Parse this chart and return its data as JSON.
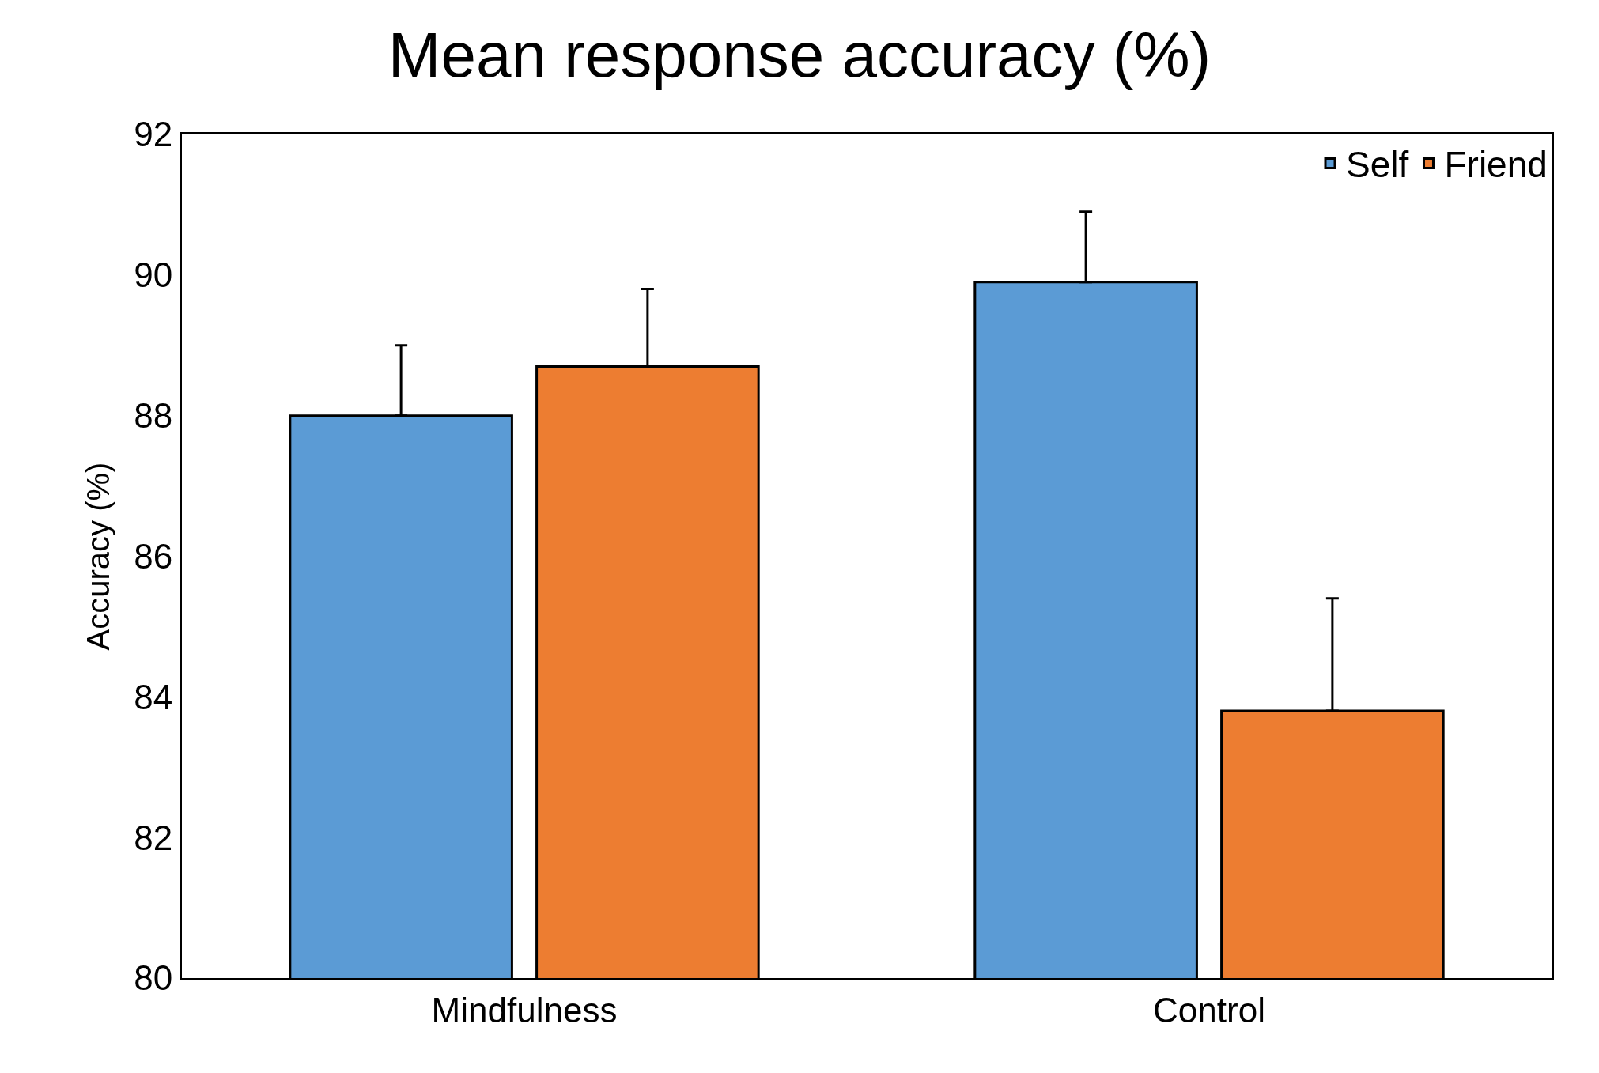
{
  "chart_data": {
    "type": "bar",
    "title": "Mean response accuracy (%)",
    "ylabel": "Accuracy (%)",
    "categories": [
      "Mindfulness",
      "Control"
    ],
    "series": [
      {
        "name": "Self",
        "color": "#5b9bd5",
        "values": [
          88.0,
          89.9
        ],
        "errors": [
          [
            88.0,
            89.0
          ],
          [
            89.9,
            90.9
          ]
        ]
      },
      {
        "name": "Friend",
        "color": "#ed7d31",
        "values": [
          88.7,
          83.8
        ],
        "errors": [
          [
            88.7,
            89.8
          ],
          [
            83.8,
            85.4
          ]
        ]
      }
    ],
    "ylim": [
      80,
      92
    ],
    "yticks": [
      80,
      82,
      84,
      86,
      88,
      90,
      92
    ],
    "grid": false,
    "legend": "top right"
  }
}
